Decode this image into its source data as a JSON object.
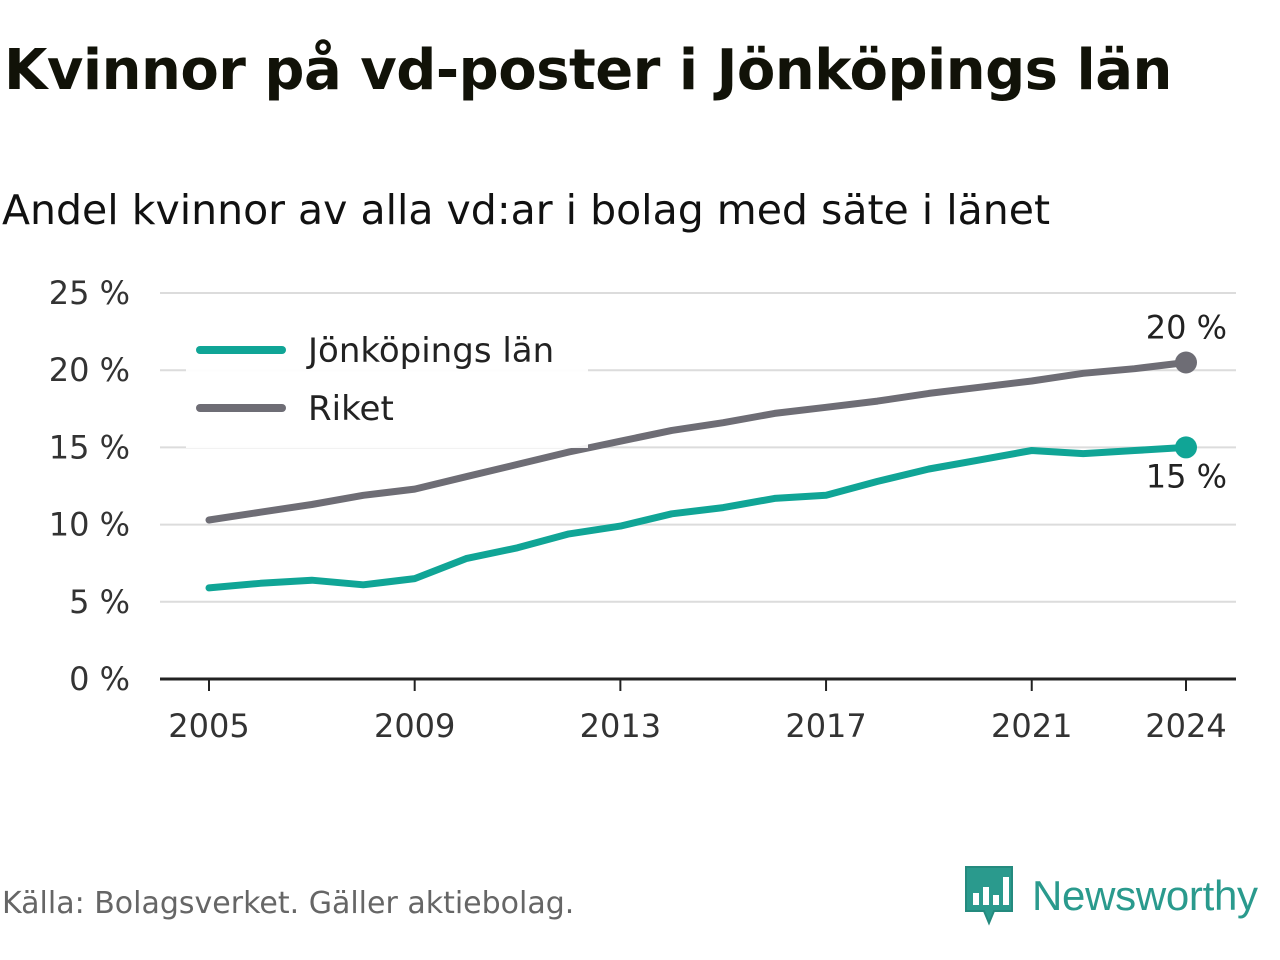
{
  "title": "Kvinnor på vd-poster i Jönköpings län",
  "subtitle": "Andel kvinnor av alla vd:ar i bolag med säte i länet",
  "source": "Källa: Bolagsverket. Gäller aktiebolag.",
  "brand": {
    "name": "Newsworthy",
    "icon": "newsworthy-logo-icon",
    "color": "#2a9a8d"
  },
  "chart_data": {
    "type": "line",
    "title": "Kvinnor på vd-poster i Jönköpings län",
    "subtitle": "Andel kvinnor av alla vd:ar i bolag med säte i länet",
    "ylim": [
      0,
      25
    ],
    "yticks": [
      0,
      5,
      10,
      15,
      20,
      25
    ],
    "ytick_labels": [
      "0 %",
      "5 %",
      "10 %",
      "15 %",
      "20 %",
      "25 %"
    ],
    "xticks": [
      2005,
      2009,
      2013,
      2017,
      2021,
      2024
    ],
    "xtick_labels": [
      "2005",
      "2009",
      "2013",
      "2017",
      "2021",
      "2024"
    ],
    "grid": true,
    "legend_position": "top-left",
    "x": [
      2005,
      2006,
      2007,
      2008,
      2009,
      2010,
      2011,
      2012,
      2013,
      2014,
      2015,
      2016,
      2017,
      2018,
      2019,
      2020,
      2021,
      2022,
      2023,
      2024
    ],
    "series": [
      {
        "name": "Jönköpings län",
        "color": "#10a596",
        "values": [
          5.9,
          6.2,
          6.4,
          6.1,
          6.5,
          7.8,
          8.5,
          9.4,
          9.9,
          10.7,
          11.1,
          11.7,
          11.9,
          12.8,
          13.6,
          14.2,
          14.8,
          14.6,
          14.8,
          15.0
        ],
        "end_label": "15 %"
      },
      {
        "name": "Riket",
        "color": "#6e6d75",
        "values": [
          10.3,
          10.8,
          11.3,
          11.9,
          12.3,
          13.1,
          13.9,
          14.7,
          15.4,
          16.1,
          16.6,
          17.2,
          17.6,
          18.0,
          18.5,
          18.9,
          19.3,
          19.8,
          20.1,
          20.5
        ],
        "end_label": "20 %"
      }
    ]
  }
}
